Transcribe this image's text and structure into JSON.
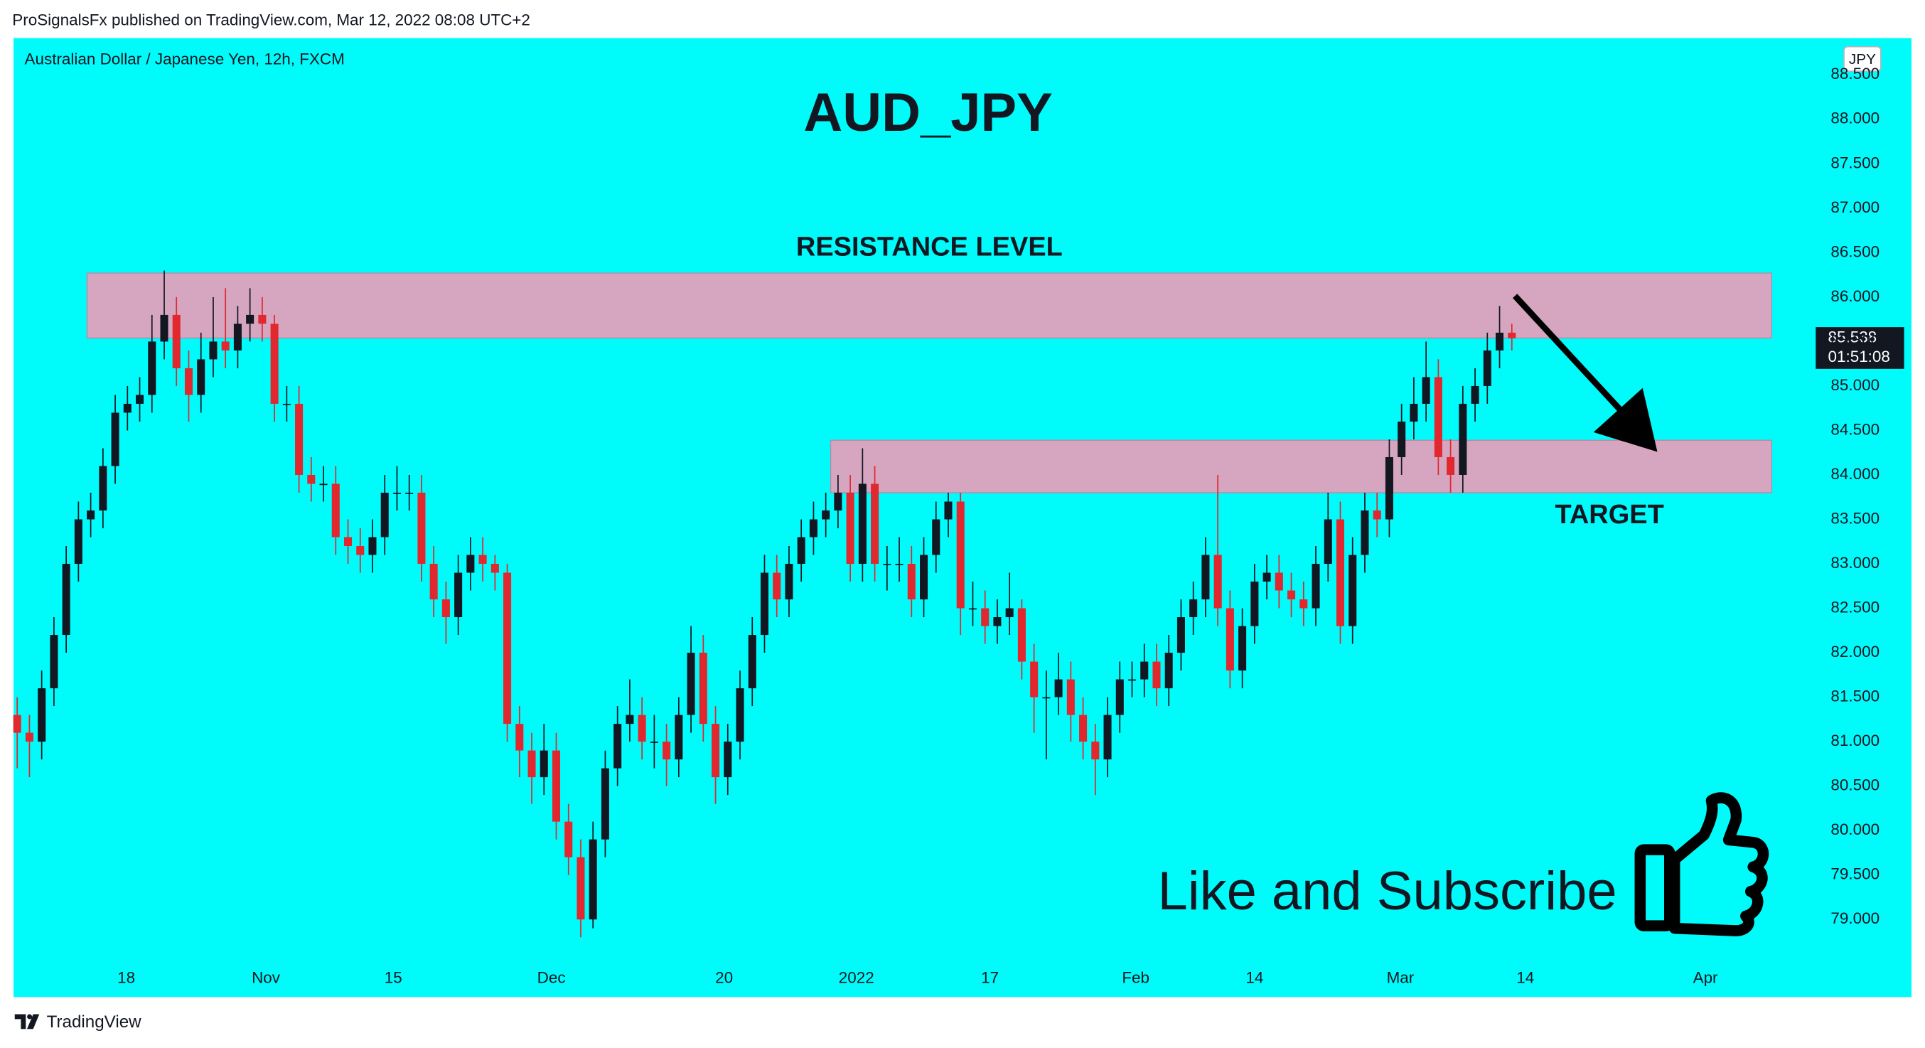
{
  "header": {
    "publisher": "ProSignalsFx published on TradingView.com, Mar 12, 2022 08:08 UTC+2"
  },
  "footer": {
    "brand": "TradingView"
  },
  "chart_data": {
    "type": "candlestick",
    "title": "AUD_JPY",
    "subtitle": "Australian Dollar / Japanese Yen, 12h, FXCM",
    "currency": "JPY",
    "countdown": "01:51:08",
    "annotation": "Like and Subscribe",
    "background": "#00fbfb",
    "up_color": "#131722",
    "down_color": "#e0282e",
    "ylim": [
      78.5,
      88.9
    ],
    "xlim": [
      -0.3,
      144.4
    ],
    "yticks": [
      {
        "value": 79,
        "label": "79.000"
      },
      {
        "value": 79.5,
        "label": "79.500"
      },
      {
        "value": 80,
        "label": "80.000"
      },
      {
        "value": 80.5,
        "label": "80.500"
      },
      {
        "value": 81,
        "label": "81.000"
      },
      {
        "value": 81.5,
        "label": "81.500"
      },
      {
        "value": 82,
        "label": "82.000"
      },
      {
        "value": 82.5,
        "label": "82.500"
      },
      {
        "value": 83,
        "label": "83.000"
      },
      {
        "value": 83.5,
        "label": "83.500"
      },
      {
        "value": 84,
        "label": "84.000"
      },
      {
        "value": 84.5,
        "label": "84.500"
      },
      {
        "value": 85,
        "label": "85.000"
      },
      {
        "value": 85.5,
        "label": "85.500"
      },
      {
        "value": 86,
        "label": "86.000"
      },
      {
        "value": 86.5,
        "label": "86.500"
      },
      {
        "value": 87,
        "label": "87.000"
      },
      {
        "value": 87.5,
        "label": "87.500"
      },
      {
        "value": 88,
        "label": "88.000"
      },
      {
        "value": 88.5,
        "label": "88.500"
      }
    ],
    "xticks": [
      {
        "value": 8.9,
        "label": "18"
      },
      {
        "value": 20.3,
        "label": "Nov"
      },
      {
        "value": 30.7,
        "label": "15"
      },
      {
        "value": 43.6,
        "label": "Dec"
      },
      {
        "value": 57.7,
        "label": "20"
      },
      {
        "value": 68.5,
        "label": "2022"
      },
      {
        "value": 79.4,
        "label": "17"
      },
      {
        "value": 91.3,
        "label": "Feb"
      },
      {
        "value": 101.0,
        "label": "14"
      },
      {
        "value": 112.9,
        "label": "Mar"
      },
      {
        "value": 123.1,
        "label": "14"
      },
      {
        "value": 137.8,
        "label": "Apr"
      }
    ],
    "zones": [
      {
        "label": "RESISTANCE LEVEL",
        "y": [
          85.54,
          86.27
        ],
        "x": [
          5.7,
          143.2
        ]
      },
      {
        "label": "TARGET",
        "y": [
          83.8,
          84.39
        ],
        "x": [
          66.4,
          143.2
        ]
      }
    ],
    "open": [
      81.3,
      81.1,
      81.0,
      81.6,
      82.2,
      83.0,
      83.5,
      83.6,
      84.1,
      84.7,
      84.8,
      84.9,
      85.5,
      85.8,
      85.2,
      84.9,
      85.3,
      85.5,
      85.4,
      85.7,
      85.8,
      85.7,
      84.8,
      84.8,
      84.0,
      83.9,
      83.9,
      83.3,
      83.2,
      83.1,
      83.3,
      83.8,
      83.8,
      83.8,
      83.0,
      82.6,
      82.4,
      82.9,
      83.1,
      83.0,
      82.9,
      81.2,
      80.9,
      80.6,
      80.9,
      80.1,
      79.7,
      79.0,
      79.9,
      80.7,
      81.2,
      81.3,
      81.0,
      81.0,
      80.8,
      81.3,
      82.0,
      81.2,
      80.6,
      81.0,
      81.6,
      82.2,
      82.9,
      82.6,
      83.0,
      83.3,
      83.5,
      83.6,
      83.8,
      83.0,
      83.9,
      83.0,
      83.0,
      83.0,
      82.6,
      83.1,
      83.5,
      83.7,
      82.5,
      82.5,
      82.3,
      82.4,
      82.5,
      81.9,
      81.5,
      81.5,
      81.7,
      81.3,
      81.0,
      80.8,
      81.3,
      81.7,
      81.7,
      81.9,
      81.6,
      82.0,
      82.4,
      82.6,
      83.1,
      82.5,
      81.8,
      82.3,
      82.8,
      82.9,
      82.7,
      82.6,
      82.5,
      83.0,
      83.5,
      82.3,
      83.1,
      83.6,
      83.5,
      84.2,
      84.6,
      84.8,
      85.1,
      84.2,
      84.0,
      84.8,
      85.0,
      85.4,
      85.6
    ],
    "high": [
      81.5,
      81.3,
      81.8,
      82.4,
      83.2,
      83.7,
      83.8,
      84.3,
      84.9,
      85.0,
      85.1,
      85.8,
      86.3,
      86.0,
      85.4,
      85.6,
      86.0,
      86.1,
      85.9,
      86.1,
      86.0,
      85.8,
      85.0,
      85.0,
      84.2,
      84.1,
      84.1,
      83.5,
      83.4,
      83.5,
      84.0,
      84.1,
      84.0,
      84.0,
      83.2,
      82.8,
      83.1,
      83.3,
      83.3,
      83.1,
      83.0,
      81.4,
      81.1,
      81.2,
      81.1,
      80.3,
      79.9,
      80.1,
      80.9,
      81.4,
      81.7,
      81.5,
      81.3,
      81.2,
      81.5,
      82.3,
      82.2,
      81.4,
      81.2,
      81.8,
      82.4,
      83.1,
      83.1,
      83.2,
      83.5,
      83.7,
      83.8,
      84.0,
      84.0,
      84.3,
      84.1,
      83.2,
      83.3,
      83.2,
      83.3,
      83.7,
      83.8,
      83.8,
      82.8,
      82.7,
      82.6,
      82.9,
      82.6,
      82.1,
      81.8,
      82.0,
      81.9,
      81.5,
      81.2,
      81.5,
      81.9,
      81.9,
      82.1,
      82.1,
      82.2,
      82.6,
      82.8,
      83.3,
      84.0,
      82.7,
      82.5,
      83.0,
      83.1,
      83.1,
      82.9,
      82.8,
      83.2,
      83.8,
      83.7,
      83.3,
      83.8,
      83.8,
      84.4,
      84.8,
      85.1,
      85.5,
      85.3,
      84.4,
      85.0,
      85.2,
      85.6,
      85.9,
      85.7
    ],
    "low": [
      80.7,
      80.6,
      80.8,
      81.4,
      82.0,
      82.8,
      83.3,
      83.4,
      83.9,
      84.5,
      84.6,
      84.7,
      85.3,
      85.0,
      84.6,
      84.7,
      85.1,
      85.2,
      85.2,
      85.5,
      85.5,
      84.6,
      84.6,
      83.8,
      83.7,
      83.7,
      83.1,
      83.0,
      82.9,
      82.9,
      83.1,
      83.6,
      83.6,
      82.8,
      82.4,
      82.1,
      82.2,
      82.7,
      82.8,
      82.7,
      81.0,
      80.6,
      80.3,
      80.4,
      79.9,
      79.5,
      78.8,
      78.9,
      79.7,
      80.5,
      81.0,
      80.8,
      80.7,
      80.5,
      80.6,
      81.1,
      81.0,
      80.3,
      80.4,
      80.8,
      81.4,
      82.0,
      82.4,
      82.4,
      82.8,
      83.1,
      83.3,
      83.4,
      82.8,
      82.8,
      82.8,
      82.7,
      82.8,
      82.4,
      82.4,
      82.9,
      83.3,
      82.2,
      82.3,
      82.1,
      82.1,
      82.2,
      81.7,
      81.1,
      80.8,
      81.3,
      81.0,
      80.8,
      80.4,
      80.6,
      81.1,
      81.5,
      81.5,
      81.4,
      81.4,
      81.8,
      82.2,
      82.4,
      82.3,
      81.6,
      81.6,
      82.1,
      82.6,
      82.5,
      82.4,
      82.3,
      82.3,
      82.8,
      82.1,
      82.1,
      82.9,
      83.3,
      83.3,
      84.0,
      84.4,
      84.6,
      84.0,
      83.8,
      83.8,
      84.6,
      84.8,
      85.2,
      85.4
    ],
    "close": [
      81.1,
      81.0,
      81.6,
      82.2,
      83.0,
      83.5,
      83.6,
      84.1,
      84.7,
      84.8,
      84.9,
      85.5,
      85.8,
      85.2,
      84.9,
      85.3,
      85.5,
      85.4,
      85.7,
      85.8,
      85.7,
      84.8,
      84.8,
      84.0,
      83.9,
      83.9,
      83.3,
      83.2,
      83.1,
      83.3,
      83.8,
      83.8,
      83.8,
      83.0,
      82.6,
      82.4,
      82.9,
      83.1,
      83.0,
      82.9,
      81.2,
      80.9,
      80.6,
      80.9,
      80.1,
      79.7,
      79.0,
      79.9,
      80.7,
      81.2,
      81.3,
      81.0,
      81.0,
      80.8,
      81.3,
      82.0,
      81.2,
      80.6,
      81.0,
      81.6,
      82.2,
      82.9,
      82.6,
      83.0,
      83.3,
      83.5,
      83.6,
      83.8,
      83.0,
      83.9,
      83.0,
      83.0,
      83.0,
      82.6,
      83.1,
      83.5,
      83.7,
      82.5,
      82.5,
      82.3,
      82.4,
      82.5,
      81.9,
      81.5,
      81.5,
      81.7,
      81.3,
      81.0,
      80.8,
      81.3,
      81.7,
      81.7,
      81.9,
      81.6,
      82.0,
      82.4,
      82.6,
      83.1,
      82.5,
      81.8,
      82.3,
      82.8,
      82.9,
      82.7,
      82.6,
      82.5,
      83.0,
      83.5,
      82.3,
      83.1,
      83.6,
      83.5,
      84.2,
      84.6,
      84.8,
      85.1,
      84.2,
      84.0,
      84.8,
      85.0,
      85.4,
      85.6,
      85.538
    ]
  }
}
